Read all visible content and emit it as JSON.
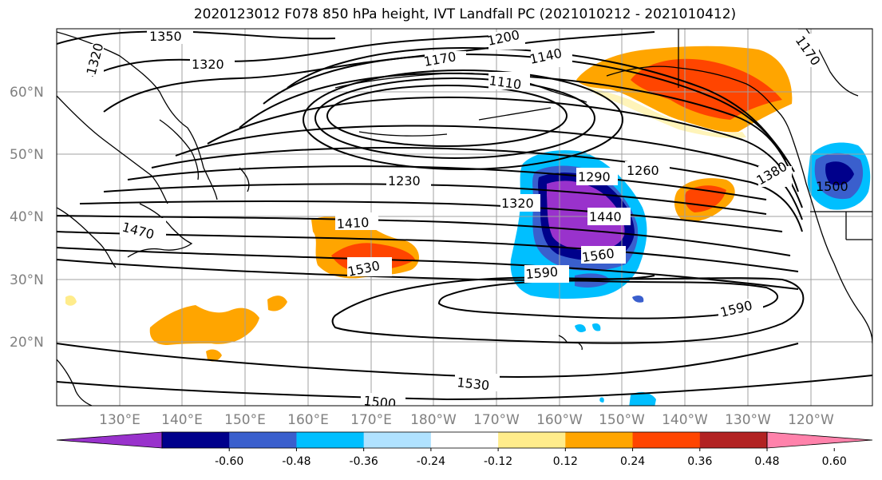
{
  "title": "2020123012 F078 850 hPa height, IVT Landfall PC (2021010212 - 2021010412)",
  "lat_labels": [
    "60°N",
    "50°N",
    "40°N",
    "30°N",
    "20°N"
  ],
  "lon_labels": [
    "130°E",
    "140°E",
    "150°E",
    "160°E",
    "170°E",
    "180°W",
    "170°W",
    "160°W",
    "150°W",
    "140°W",
    "130°W",
    "120°W"
  ],
  "contour_labels": [
    "1350",
    "1320",
    "1320",
    "1200",
    "1170",
    "1140",
    "1110",
    "1230",
    "1290",
    "1260",
    "1320",
    "1440",
    "1410",
    "1470",
    "1530",
    "1560",
    "1590",
    "1590",
    "1380",
    "1500",
    "1530",
    "1500",
    "1170"
  ],
  "colorbar": {
    "ticks": [
      "-0.60",
      "-0.48",
      "-0.36",
      "-0.24",
      "-0.12",
      "0.12",
      "0.24",
      "0.36",
      "0.48",
      "0.60"
    ],
    "colors": [
      "#9932cc",
      "#00008b",
      "#3a5fcd",
      "#00bfff",
      "#b0e2ff",
      "#ffffff",
      "#ffec8b",
      "#ffa500",
      "#ff4500",
      "#b22222",
      "#ff82ab"
    ]
  },
  "field_colors": {
    "purple": "#9932cc",
    "navy": "#00008b",
    "blue": "#3a5fcd",
    "cyan": "#00bfff",
    "lightblue": "#b0e2ff",
    "yellow": "#ffec8b",
    "orange": "#ffa500",
    "redorange": "#ff4500"
  }
}
